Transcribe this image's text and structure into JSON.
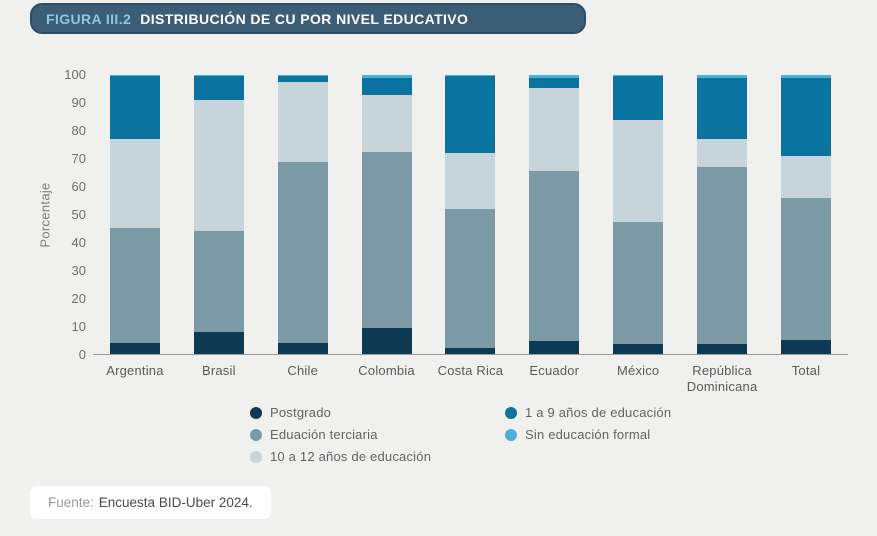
{
  "header": {
    "figure_label": "FIGURA III.2",
    "title": "DISTRIBUCIÓN DE CU POR NIVEL EDUCATIVO",
    "bar_color": "#3b5e76",
    "figure_label_color": "#8ec6e0",
    "title_color": "#ffffff"
  },
  "chart_data": {
    "type": "bar",
    "stacked": true,
    "title": "DISTRIBUCIÓN DE CU POR NIVEL EDUCATIVO",
    "xlabel": "",
    "ylabel": "Porcentaje",
    "ylim": [
      0,
      100
    ],
    "yticks": [
      0,
      10,
      20,
      30,
      40,
      50,
      60,
      70,
      80,
      90,
      100
    ],
    "grid": false,
    "legend_position": "bottom",
    "categories": [
      "Argentina",
      "Brasil",
      "Chile",
      "Colombia",
      "Costa Rica",
      "Ecuador",
      "México",
      "República Dominicana",
      "Total"
    ],
    "series": [
      {
        "name": "Postgrado",
        "color": "#0d3a52",
        "values": [
          4,
          8,
          4,
          9.5,
          2,
          4.5,
          3.5,
          3.5,
          5
        ]
      },
      {
        "name": "Eduación terciaria",
        "color": "#7b9aa6",
        "values": [
          41,
          36,
          65,
          63,
          50,
          61,
          44,
          63.5,
          51
        ]
      },
      {
        "name": "10 a 12 años de educación",
        "color": "#c7d4da",
        "values": [
          32,
          47,
          28.5,
          20.5,
          20,
          30,
          36.5,
          10,
          15
        ]
      },
      {
        "name": "1 a 9 años de educación",
        "color": "#0b73a0",
        "values": [
          22.5,
          8.5,
          2,
          6,
          27.5,
          3.5,
          15.5,
          22,
          28
        ]
      },
      {
        "name": "Sin educación formal",
        "color": "#4db0d6",
        "values": [
          0.5,
          0.5,
          0.5,
          1,
          0.5,
          1,
          0.5,
          1,
          1
        ]
      }
    ]
  },
  "legend": {
    "columns": [
      [
        "Postgrado",
        "Eduación terciaria",
        "10 a 12 años de educación"
      ],
      [
        "1 a 9 años de educación",
        "Sin educación formal"
      ]
    ]
  },
  "footer": {
    "prefix": "Fuente:",
    "text": "Encuesta BID-Uber 2024."
  }
}
